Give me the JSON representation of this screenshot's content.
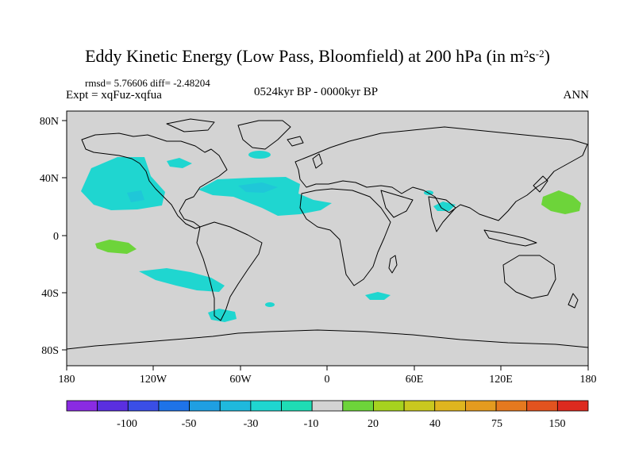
{
  "title": {
    "main": "Eddy Kinetic Energy (Low Pass, Bloomfield) at 200 hPa (in m",
    "sup1": "2",
    "mid": "s",
    "sup2": "-2",
    "end": ")"
  },
  "stats": "rmsd= 5.76606 diff= -2.48204",
  "expt": "Expt = xqFuz-xqfua",
  "period": "0524kyr BP - 0000kyr BP",
  "season": "ANN",
  "map": {
    "projection": "cylindrical-equidistant",
    "lon_range": [
      -180,
      180
    ],
    "lat_range": [
      -90,
      90
    ],
    "xtick_labels": [
      "180",
      "120W",
      "60W",
      "0",
      "60E",
      "120E",
      "180"
    ],
    "ytick_labels": [
      "80N",
      "40N",
      "0",
      "40S",
      "80S"
    ],
    "ocean_land_background": "#d3d3d3",
    "coastline_color": "#000000"
  },
  "colorbar": {
    "colors": [
      "#8a2be2",
      "#5a2fe0",
      "#3a4ee6",
      "#1e73e8",
      "#1f9fe2",
      "#1fb9dd",
      "#1fd6d0",
      "#1fdcb4",
      "#d3d3d3",
      "#6dd43a",
      "#a6d21f",
      "#c9c81f",
      "#dfb51f",
      "#e49b1f",
      "#e5791f",
      "#e2531f",
      "#dd2a1f"
    ],
    "labels": [
      "-100",
      "-50",
      "-30",
      "-10",
      "20",
      "40",
      "75",
      "150"
    ]
  },
  "anomaly_regions": [
    {
      "name": "north-pacific-east",
      "color": "#1fd6d0"
    },
    {
      "name": "north-atlantic",
      "color": "#1fd6d0"
    },
    {
      "name": "south-pacific-east",
      "color": "#1fd6d0"
    },
    {
      "name": "south-america-south",
      "color": "#1fd6d0"
    },
    {
      "name": "south-indian-ocean",
      "color": "#1fd6d0"
    },
    {
      "name": "east-pacific-tropical",
      "color": "#6dd43a"
    },
    {
      "name": "northwest-pacific",
      "color": "#6dd43a"
    },
    {
      "name": "india",
      "color": "#1fd6d0"
    }
  ]
}
